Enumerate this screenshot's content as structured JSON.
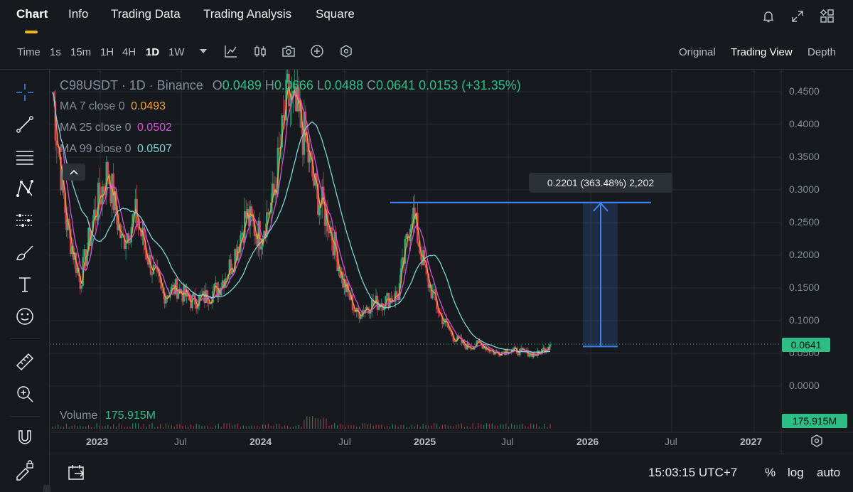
{
  "nav": {
    "tabs": [
      {
        "label": "Chart",
        "active": true
      },
      {
        "label": "Info"
      },
      {
        "label": "Trading Data"
      },
      {
        "label": "Trading Analysis"
      },
      {
        "label": "Square"
      }
    ],
    "icons": [
      "bell-icon",
      "expand-icon",
      "layout-grid-icon"
    ]
  },
  "toolbar": {
    "time_label": "Time",
    "intervals": [
      "1s",
      "15m",
      "1H",
      "4H",
      "1D",
      "1W"
    ],
    "active_interval": "1D",
    "icons": [
      "chevron-down-icon",
      "indicator-icon",
      "candle-type-icon",
      "camera-icon",
      "add-icon",
      "settings-hex-icon"
    ],
    "views": [
      "Original",
      "Trading View",
      "Depth"
    ],
    "active_view": "Trading View"
  },
  "left_tools": [
    "crosshair-icon",
    "trend-line-icon",
    "fib-icon",
    "pattern-icon",
    "prediction-icon",
    "brush-icon",
    "text-icon",
    "emoji-icon",
    "ruler-icon",
    "zoom-in-icon",
    "magnet-icon",
    "lock-draw-icon"
  ],
  "legend": {
    "symbol": "C98USDT · 1D · Binance",
    "o_label": "O",
    "o_value": "0.0489",
    "h_label": "H",
    "h_value": "0.0666",
    "l_label": "L",
    "l_value": "0.0488",
    "c_label": "C",
    "c_value": "0.0641",
    "change": "0.0153 (+31.35%)",
    "ma7_label": "MA 7 close 0",
    "ma7_value": "0.0493",
    "ma25_label": "MA 25 close 0",
    "ma25_value": "0.0502",
    "ma99_label": "MA 99 close 0",
    "ma99_value": "0.0507",
    "volume_label": "Volume",
    "volume_value": "175.915M"
  },
  "measure": {
    "label": "0.2201 (363.48%) 2,202",
    "from_price": 0.0605,
    "to_price": 0.2806
  },
  "price_tags": {
    "last": "0.0641",
    "volume": "175.915M"
  },
  "colors": {
    "up": "#2ebd85",
    "down": "#f6465d",
    "ma7": "#f0a33a",
    "ma25": "#d64fd8",
    "ma99": "#7fd4d4",
    "measure": "#3b82f6",
    "accent": "#f0b90b"
  },
  "chart_data": {
    "type": "line",
    "title": "C98USDT · 1D · Binance",
    "y_ticks": [
      "0.4500",
      "0.4000",
      "0.3500",
      "0.3000",
      "0.2500",
      "0.2000",
      "0.1500",
      "0.1000",
      "0.0500",
      "0.0000"
    ],
    "ylim": [
      0,
      0.47
    ],
    "x_ticks": [
      "2023",
      "Jul",
      "2024",
      "Jul",
      "2025",
      "Jul",
      "2026",
      "Jul",
      "2027"
    ],
    "series": [
      {
        "name": "C98USDT",
        "x": [
          "2022-10",
          "2022-11",
          "2022-12",
          "2023-01",
          "2023-02",
          "2023-03",
          "2023-04",
          "2023-05",
          "2023-06",
          "2023-07",
          "2023-08",
          "2023-09",
          "2023-10",
          "2023-11",
          "2023-12",
          "2024-01",
          "2024-02",
          "2024-03",
          "2024-04",
          "2024-05",
          "2024-06",
          "2024-07",
          "2024-08",
          "2024-09",
          "2024-10",
          "2024-11",
          "2024-12",
          "2025-01",
          "2025-02",
          "2025-03",
          "2025-04",
          "2025-05",
          "2025-06",
          "2025-07",
          "2025-08",
          "2025-09",
          "2025-10"
        ],
        "values": [
          0.45,
          0.25,
          0.16,
          0.26,
          0.33,
          0.22,
          0.26,
          0.19,
          0.14,
          0.15,
          0.13,
          0.135,
          0.15,
          0.19,
          0.26,
          0.23,
          0.29,
          0.44,
          0.4,
          0.3,
          0.25,
          0.16,
          0.11,
          0.125,
          0.13,
          0.14,
          0.27,
          0.17,
          0.11,
          0.075,
          0.06,
          0.065,
          0.05,
          0.055,
          0.052,
          0.048,
          0.064
        ]
      }
    ],
    "volume": {
      "last": "175.915M"
    },
    "grid": true,
    "legend_position": "top-left"
  },
  "bottom": {
    "time": "15:03:15 UTC+7",
    "percent": "%",
    "log": "log",
    "auto": "auto"
  }
}
